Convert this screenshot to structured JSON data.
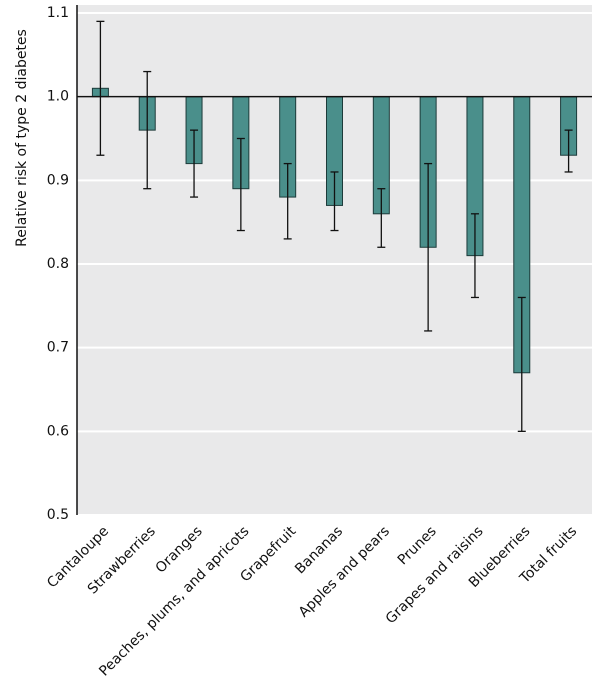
{
  "chart_data": {
    "type": "bar",
    "y_label": "Relative risk of type 2 diabetes",
    "categories": [
      "Cantaloupe",
      "Strawberries",
      "Oranges",
      "Peaches, plums, and apricots",
      "Grapefruit",
      "Bananas",
      "Apples and pears",
      "Prunes",
      "Grapes and raisins",
      "Blueberries",
      "Total fruits"
    ],
    "values": [
      1.01,
      0.96,
      0.92,
      0.89,
      0.88,
      0.87,
      0.86,
      0.82,
      0.81,
      0.67,
      0.93
    ],
    "ci_low": [
      0.93,
      0.89,
      0.88,
      0.84,
      0.83,
      0.84,
      0.82,
      0.72,
      0.76,
      0.6,
      0.91
    ],
    "ci_high": [
      1.09,
      1.03,
      0.96,
      0.95,
      0.92,
      0.91,
      0.89,
      0.92,
      0.86,
      0.76,
      0.96
    ],
    "baseline": 1,
    "color": "#4a8f8b",
    "ylim": [
      0.5,
      1.1
    ],
    "yticks": [
      0.5,
      0.6,
      0.7,
      0.8,
      0.9,
      {
        "value": 1,
        "label": "1.0"
      },
      1.1
    ],
    "grid": true
  }
}
